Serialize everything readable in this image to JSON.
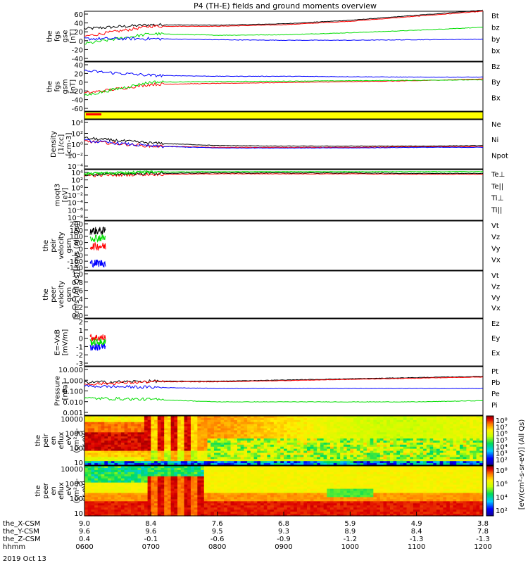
{
  "title": "P4 (TH-E) fields and ground moments overview",
  "date_label": "2019 Oct 13",
  "orbit_rows": [
    {
      "label": "the_X-CSM",
      "values": [
        "9.0",
        "8.4",
        "7.6",
        "6.8",
        "5.9",
        "4.9",
        "3.8"
      ]
    },
    {
      "label": "the_Y-CSM",
      "values": [
        "9.6",
        "9.6",
        "9.5",
        "9.3",
        "8.9",
        "8.4",
        "7.8"
      ]
    },
    {
      "label": "the_Z-CSM",
      "values": [
        "0.4",
        "-0.1",
        "-0.6",
        "-0.9",
        "-1.2",
        "-1.3",
        "-1.3"
      ]
    },
    {
      "label": "hhmm",
      "values": [
        "0600",
        "0700",
        "0800",
        "0900",
        "1000",
        "1100",
        "1200"
      ]
    }
  ],
  "colorbar_label": "[eV/(cm²-s-sr-eV)] (All Qs)",
  "colorbar_ticks": [
    "10⁸",
    "10⁷",
    "10⁶",
    "10⁵",
    "10⁴",
    "10³",
    "10²"
  ],
  "colorbar_ticks_lower": [
    "10⁸",
    "10⁶",
    "10⁴",
    "10²"
  ],
  "panels": [
    {
      "id": "fgs-gse",
      "ylabel": [
        "the",
        "fgs",
        "gse",
        "[nT]"
      ],
      "ticks": [
        "60",
        "40",
        "20",
        "0",
        "-20",
        "-40"
      ],
      "legend": [
        {
          "t": "Bt",
          "c": "#000000"
        },
        {
          "t": "bz",
          "c": "#ff0000"
        },
        {
          "t": "by",
          "c": "#00dd00"
        },
        {
          "t": "bx",
          "c": "#0000ff"
        }
      ]
    },
    {
      "id": "fgs-gsm",
      "ylabel": [
        "the",
        "fgs",
        "gsm",
        "[nT]"
      ],
      "ticks": [
        "40",
        "20",
        "0",
        "-20",
        "-40",
        "-60"
      ],
      "legend": [
        {
          "t": "Bz",
          "c": "#ff0000"
        },
        {
          "t": "By",
          "c": "#00dd00"
        },
        {
          "t": "Bx",
          "c": "#0000ff"
        }
      ]
    },
    {
      "id": "density",
      "ylabel": [
        "Density",
        "[1/cc]",
        "[cm-3]"
      ],
      "ticks": [
        "10⁴",
        "10²",
        "10⁰",
        "10⁻²",
        "10⁻⁴"
      ],
      "legend": [
        {
          "t": "Ne",
          "c": "#ff0000"
        },
        {
          "t": "Ni",
          "c": "#000000"
        },
        {
          "t": "Npot",
          "c": "#0000ff"
        }
      ]
    },
    {
      "id": "temperature",
      "ylabel": [
        "moqt3",
        "[eV]"
      ],
      "ticks": [
        "10⁴",
        "10²",
        "10⁰",
        "10⁻²",
        "10⁻⁴",
        "10⁻⁶",
        "10⁻⁸"
      ],
      "legend": [
        {
          "t": "Te⊥",
          "c": "#ff0000"
        },
        {
          "t": "Te||",
          "c": "#000000"
        },
        {
          "t": "Ti⊥",
          "c": "#00dd00"
        },
        {
          "t": "Ti||",
          "c": "#00dd00"
        }
      ]
    },
    {
      "id": "peir-velocity",
      "ylabel": [
        "the",
        "peir",
        "velocity",
        "gsm",
        "[km/s (All Qs)]"
      ],
      "ticks": [
        "200",
        "150",
        "100",
        "50",
        "0",
        "-50",
        "-100",
        "-150"
      ],
      "legend": [
        {
          "t": "Vt",
          "c": "#000000"
        },
        {
          "t": "Vz",
          "c": "#ff0000"
        },
        {
          "t": "Vy",
          "c": "#00dd00"
        },
        {
          "t": "Vx",
          "c": "#0000ff"
        }
      ]
    },
    {
      "id": "peer-velocity",
      "ylabel": [
        "the",
        "peer",
        "velocity",
        "gsm",
        "[km/s (All Qs)]"
      ],
      "ticks": [
        "1.0",
        "0.8",
        "0.6",
        "0.4",
        "0.2",
        "0.0"
      ],
      "legend": [
        {
          "t": "Vt",
          "c": "#000000"
        },
        {
          "t": "Vz",
          "c": "#ff0000"
        },
        {
          "t": "Vy",
          "c": "#00dd00"
        },
        {
          "t": "Vx",
          "c": "#0000ff"
        }
      ]
    },
    {
      "id": "efield",
      "ylabel": [
        "E=-VxB",
        "[mV/m]"
      ],
      "ticks": [
        "2",
        "1",
        "0",
        "-1",
        "-2",
        "-3"
      ],
      "legend": [
        {
          "t": "Ez",
          "c": "#ff0000"
        },
        {
          "t": "Ey",
          "c": "#00dd00"
        },
        {
          "t": "Ex",
          "c": "#0000ff"
        }
      ]
    },
    {
      "id": "pressure",
      "ylabel": [
        "Pressure",
        "[nPa]"
      ],
      "ticks": [
        "10.000",
        "1.000",
        "0.100",
        "0.010",
        "0.001"
      ],
      "legend": [
        {
          "t": "Pt",
          "c": "#000000"
        },
        {
          "t": "Pb",
          "c": "#ff0000"
        },
        {
          "t": "Pe",
          "c": "#00dd00"
        },
        {
          "t": "Pi",
          "c": "#0000ff"
        }
      ]
    },
    {
      "id": "peir-spec",
      "ylabel": [
        "the",
        "peir",
        "en",
        "eflux",
        "eV",
        "(cm²-s-",
        "sr-eV)"
      ],
      "ticks": [
        "10000",
        "1000",
        "100",
        "10"
      ],
      "legend": []
    },
    {
      "id": "peer-spec",
      "ylabel": [
        "the",
        "peer",
        "en",
        "eflux",
        "eV",
        "(cm²-s-",
        "sr-eV)"
      ],
      "ticks": [
        "10000",
        "1000",
        "100",
        "10"
      ],
      "legend": []
    }
  ],
  "chart_data": {
    "type": "line",
    "title": "P4 (TH-E) fields and ground moments overview",
    "x_ticks": [
      "0600",
      "0700",
      "0800",
      "0900",
      "1000",
      "1100",
      "1200"
    ],
    "x": [
      "0600",
      "0700",
      "0800",
      "0900",
      "1000",
      "1100",
      "1200"
    ],
    "panels": [
      {
        "id": "fgs-gse",
        "ylim": [
          -40,
          60
        ],
        "series": [
          {
            "name": "Bt",
            "color": "#000000",
            "values": [
              25,
              33,
              32,
              35,
              42,
              52,
              62
            ]
          },
          {
            "name": "bz",
            "color": "#ff0000",
            "values": [
              10,
              30,
              30,
              33,
              40,
              50,
              60
            ]
          },
          {
            "name": "by",
            "color": "#00dd00",
            "values": [
              -5,
              15,
              12,
              13,
              17,
              22,
              28
            ]
          },
          {
            "name": "bx",
            "color": "#0000ff",
            "values": [
              5,
              5,
              3,
              2,
              2,
              3,
              4
            ]
          }
        ]
      },
      {
        "id": "fgs-gsm",
        "ylim": [
          -70,
          40
        ],
        "series": [
          {
            "name": "Bz",
            "color": "#ff0000",
            "values": [
              -30,
              -10,
              -8,
              -6,
              -4,
              -2,
              2
            ]
          },
          {
            "name": "By",
            "color": "#00dd00",
            "values": [
              -35,
              -5,
              -4,
              -3,
              -2,
              -1,
              0
            ]
          },
          {
            "name": "Bx",
            "color": "#0000ff",
            "values": [
              20,
              10,
              8,
              8,
              7,
              6,
              6
            ]
          }
        ]
      },
      {
        "id": "density",
        "ylim_log10": [
          -4,
          4
        ],
        "series": [
          {
            "name": "Ne",
            "color": "#ff0000",
            "values_log10": [
              0.5,
              -0.3,
              -0.5,
              -0.5,
              -0.5,
              -0.4,
              -0.4
            ]
          },
          {
            "name": "Ni",
            "color": "#000000",
            "values_log10": [
              1,
              0.2,
              -0.2,
              -0.3,
              -0.3,
              -0.3,
              -0.2
            ]
          },
          {
            "name": "Npot",
            "color": "#0000ff",
            "values_log10": [
              0.6,
              -0.3,
              -0.6,
              -0.6,
              -0.6,
              -0.5,
              -0.5
            ]
          }
        ]
      },
      {
        "id": "temperature",
        "ylim_log10": [
          -8,
          4
        ],
        "series": [
          {
            "name": "Te⊥",
            "color": "#ff0000",
            "values_log10": [
              2.6,
              2.9,
              3.0,
              3.0,
              3.0,
              2.9,
              2.9
            ]
          },
          {
            "name": "Te||",
            "color": "#000000",
            "values_log10": [
              2.8,
              3.1,
              3.2,
              3.2,
              3.2,
              3.1,
              3.1
            ]
          },
          {
            "name": "Ti⊥",
            "color": "#00dd00",
            "values_log10": [
              3.0,
              3.4,
              3.5,
              3.5,
              3.5,
              3.5,
              3.5
            ]
          },
          {
            "name": "Ti||",
            "color": "#00dd00",
            "values_log10": [
              3.0,
              3.4,
              3.5,
              3.5,
              3.5,
              3.5,
              3.5
            ]
          }
        ]
      },
      {
        "id": "peir-velocity",
        "ylim": [
          -150,
          200
        ],
        "series": [
          {
            "name": "Vt",
            "color": "#000000",
            "values": [
              130
            ]
          },
          {
            "name": "Vz",
            "color": "#ff0000",
            "values": [
              20
            ]
          },
          {
            "name": "Vy",
            "color": "#00dd00",
            "values": [
              80
            ]
          },
          {
            "name": "Vx",
            "color": "#0000ff",
            "values": [
              -100
            ]
          }
        ]
      },
      {
        "id": "peer-velocity",
        "ylim": [
          0,
          1
        ],
        "series": []
      },
      {
        "id": "efield",
        "ylim": [
          -3,
          2
        ],
        "series": [
          {
            "name": "Ez",
            "color": "#ff0000",
            "values": [
              0
            ]
          },
          {
            "name": "Ey",
            "color": "#00dd00",
            "values": [
              -0.5
            ]
          },
          {
            "name": "Ex",
            "color": "#0000ff",
            "values": [
              -1
            ]
          }
        ]
      },
      {
        "id": "pressure",
        "ylim_log10": [
          -3,
          1
        ],
        "series": [
          {
            "name": "Pt",
            "color": "#000000",
            "values_log10": [
              -0.3,
              -0.2,
              -0.2,
              -0.1,
              0.0,
              0.1,
              0.2
            ]
          },
          {
            "name": "Pb",
            "color": "#ff0000",
            "values_log10": [
              -0.45,
              -0.25,
              -0.25,
              -0.15,
              -0.05,
              0.05,
              0.15
            ]
          },
          {
            "name": "Pe",
            "color": "#00dd00",
            "values_log10": [
              -1.6,
              -1.7,
              -1.9,
              -1.9,
              -1.9,
              -1.9,
              -1.8
            ]
          },
          {
            "name": "Pi",
            "color": "#0000ff",
            "values_log10": [
              -0.6,
              -0.7,
              -0.8,
              -0.8,
              -0.8,
              -0.8,
              -0.8
            ]
          }
        ]
      }
    ],
    "spectrograms": [
      {
        "id": "peir-spec",
        "ylim": [
          5,
          20000
        ],
        "log": true
      },
      {
        "id": "peer-spec",
        "ylim": [
          5,
          20000
        ],
        "log": true
      }
    ]
  }
}
